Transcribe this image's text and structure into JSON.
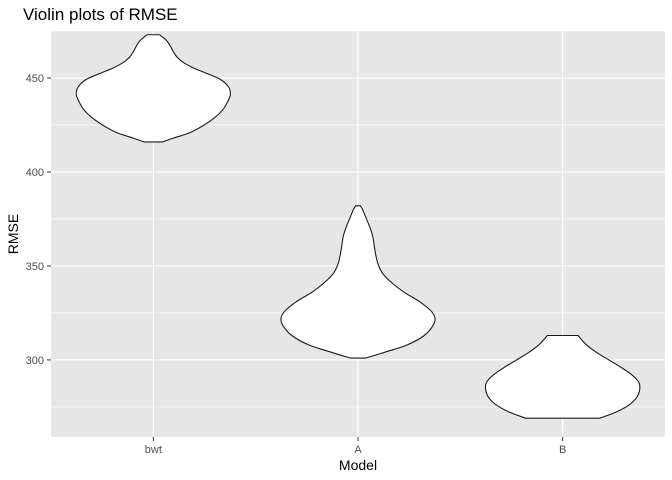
{
  "chart_data": {
    "type": "violin",
    "title": "Violin plots of RMSE",
    "xlabel": "Model",
    "ylabel": "RMSE",
    "categories": [
      "bwt",
      "A",
      "B"
    ],
    "ylim": [
      259,
      475
    ],
    "yticks": [
      300,
      350,
      400,
      450
    ],
    "grid": true,
    "legend": "none",
    "colors": {
      "panel": "#e6e6e6",
      "grid_major": "#ffffff",
      "fill": "#ffffff",
      "outline": "#1a1a1a"
    },
    "violins": [
      {
        "category": "bwt",
        "min": 416,
        "max": 473,
        "profile": [
          [
            416,
            0.12
          ],
          [
            418,
            0.26
          ],
          [
            421,
            0.48
          ],
          [
            425,
            0.66
          ],
          [
            429,
            0.8
          ],
          [
            433,
            0.9
          ],
          [
            437,
            0.96
          ],
          [
            441,
            1.0
          ],
          [
            445,
            0.98
          ],
          [
            449,
            0.88
          ],
          [
            452,
            0.72
          ],
          [
            455,
            0.54
          ],
          [
            458,
            0.4
          ],
          [
            461,
            0.31
          ],
          [
            464,
            0.26
          ],
          [
            467,
            0.22
          ],
          [
            470,
            0.17
          ],
          [
            473,
            0.08
          ]
        ]
      },
      {
        "category": "A",
        "min": 301,
        "max": 382,
        "profile": [
          [
            301,
            0.1
          ],
          [
            304,
            0.34
          ],
          [
            308,
            0.64
          ],
          [
            313,
            0.86
          ],
          [
            318,
            0.97
          ],
          [
            322,
            1.0
          ],
          [
            326,
            0.95
          ],
          [
            331,
            0.8
          ],
          [
            336,
            0.6
          ],
          [
            341,
            0.44
          ],
          [
            346,
            0.32
          ],
          [
            351,
            0.26
          ],
          [
            356,
            0.23
          ],
          [
            361,
            0.21
          ],
          [
            366,
            0.19
          ],
          [
            371,
            0.15
          ],
          [
            376,
            0.1
          ],
          [
            380,
            0.06
          ],
          [
            382,
            0.03
          ]
        ]
      },
      {
        "category": "B",
        "min": 269,
        "max": 313,
        "profile": [
          [
            269,
            0.48
          ],
          [
            272,
            0.68
          ],
          [
            276,
            0.86
          ],
          [
            280,
            0.96
          ],
          [
            284,
            1.0
          ],
          [
            288,
            0.99
          ],
          [
            292,
            0.9
          ],
          [
            296,
            0.76
          ],
          [
            300,
            0.6
          ],
          [
            304,
            0.44
          ],
          [
            308,
            0.31
          ],
          [
            311,
            0.24
          ],
          [
            313,
            0.2
          ]
        ]
      }
    ]
  }
}
